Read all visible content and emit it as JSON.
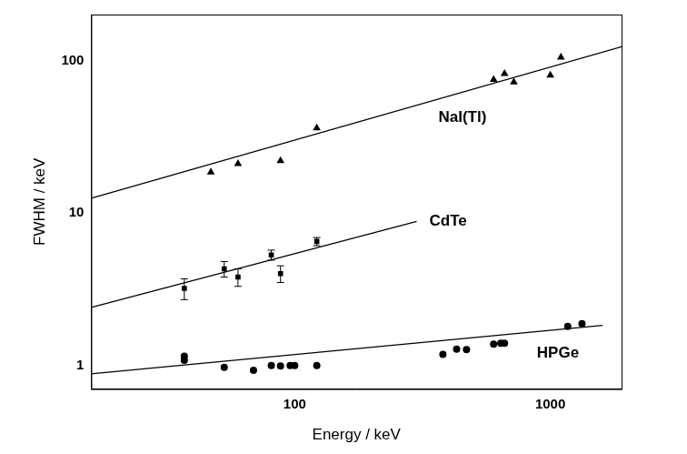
{
  "chart_data": {
    "type": "scatter",
    "x_label": "Energy / keV",
    "y_label": "FWHM / keV",
    "log": true,
    "grid": false,
    "xlim": [
      16,
      1900
    ],
    "ylim": [
      0.7,
      200
    ],
    "xticks": [
      100,
      1000
    ],
    "yticks": [
      1,
      10,
      100
    ],
    "series": [
      {
        "name": "NaI(Tl)",
        "color": "#000000",
        "marker": "triangle",
        "x": [
          47,
          60,
          88,
          122,
          600,
          662,
          720,
          1000,
          1100
        ],
        "values": [
          18.5,
          21,
          22,
          36,
          75,
          82,
          72,
          80,
          105
        ],
        "fit": {
          "x": [
            16,
            1900
          ],
          "values": [
            12.5,
            123
          ]
        }
      },
      {
        "name": "CdTe",
        "color": "#000000",
        "marker": "square",
        "x": [
          37,
          53,
          60,
          81,
          88,
          122
        ],
        "values": [
          3.2,
          4.3,
          3.8,
          5.3,
          4.0,
          6.5
        ],
        "errors": [
          0.5,
          0.5,
          0.5,
          0.4,
          0.5,
          0.4
        ],
        "fit": {
          "x": [
            16,
            300
          ],
          "values": [
            2.4,
            8.8
          ]
        }
      },
      {
        "name": "HPGe",
        "color": "#000000",
        "marker": "circle",
        "x": [
          37,
          37,
          53,
          69,
          81,
          88,
          96,
          100,
          122,
          380,
          430,
          470,
          600,
          640,
          662,
          1170,
          1330
        ],
        "values": [
          1.15,
          1.08,
          0.97,
          0.93,
          1.0,
          0.99,
          1.0,
          1.0,
          1.0,
          1.18,
          1.28,
          1.27,
          1.38,
          1.4,
          1.4,
          1.8,
          1.88
        ],
        "fit": {
          "x": [
            16,
            1600
          ],
          "values": [
            0.88,
            1.83
          ]
        }
      }
    ]
  }
}
